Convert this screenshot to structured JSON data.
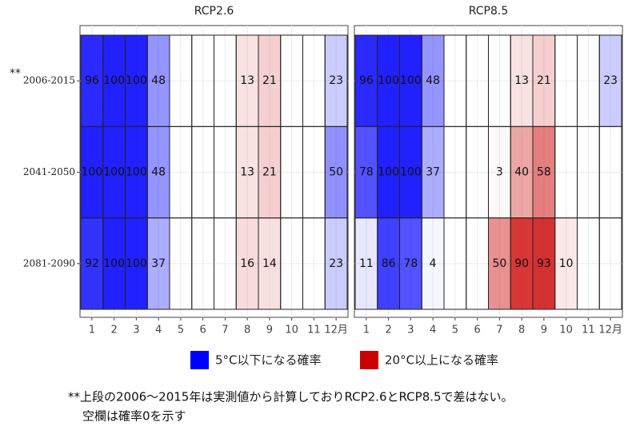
{
  "chart_data": {
    "type": "heatmap",
    "categories": [
      "1",
      "2",
      "3",
      "4",
      "5",
      "6",
      "7",
      "8",
      "9",
      "10",
      "11",
      "12月"
    ],
    "rows": [
      "2006-2015",
      "2041-2050",
      "2081-2090"
    ],
    "row_marker": "**",
    "series": [
      {
        "name": "5°C以下になる確率",
        "color": "#0000ff"
      },
      {
        "name": "20°C以上になる確率",
        "color": "#cc0000"
      }
    ],
    "panels": [
      {
        "title": "RCP2.6",
        "series": [
          {
            "values": [
              [
                96,
                100,
                100,
                48,
                null,
                null,
                null,
                null,
                null,
                null,
                null,
                23
              ],
              [
                100,
                100,
                100,
                48,
                null,
                null,
                null,
                null,
                null,
                null,
                null,
                50
              ],
              [
                92,
                100,
                100,
                37,
                null,
                null,
                null,
                null,
                null,
                null,
                null,
                23
              ]
            ]
          },
          {
            "values": [
              [
                null,
                null,
                null,
                null,
                null,
                null,
                null,
                13,
                21,
                null,
                null,
                null
              ],
              [
                null,
                null,
                null,
                null,
                null,
                null,
                null,
                13,
                21,
                null,
                null,
                null
              ],
              [
                null,
                null,
                null,
                null,
                null,
                null,
                null,
                16,
                14,
                null,
                null,
                null
              ]
            ]
          }
        ]
      },
      {
        "title": "RCP8.5",
        "series": [
          {
            "values": [
              [
                96,
                100,
                100,
                48,
                null,
                null,
                null,
                null,
                null,
                null,
                null,
                23
              ],
              [
                78,
                100,
                100,
                37,
                null,
                null,
                null,
                null,
                null,
                null,
                null,
                null
              ],
              [
                11,
                86,
                78,
                4,
                null,
                null,
                null,
                null,
                null,
                null,
                null,
                null
              ]
            ]
          },
          {
            "values": [
              [
                null,
                null,
                null,
                null,
                null,
                null,
                null,
                13,
                21,
                null,
                null,
                null
              ],
              [
                null,
                null,
                null,
                null,
                null,
                null,
                3,
                40,
                58,
                null,
                null,
                null
              ],
              [
                null,
                null,
                null,
                null,
                null,
                null,
                50,
                90,
                93,
                10,
                null,
                null
              ]
            ]
          }
        ]
      }
    ],
    "footnote": [
      "**上段の2006～2015年は実測値から計算しておりRCP2.6とRCP8.5で差はない。",
      "空欄は確率0を示す"
    ]
  }
}
